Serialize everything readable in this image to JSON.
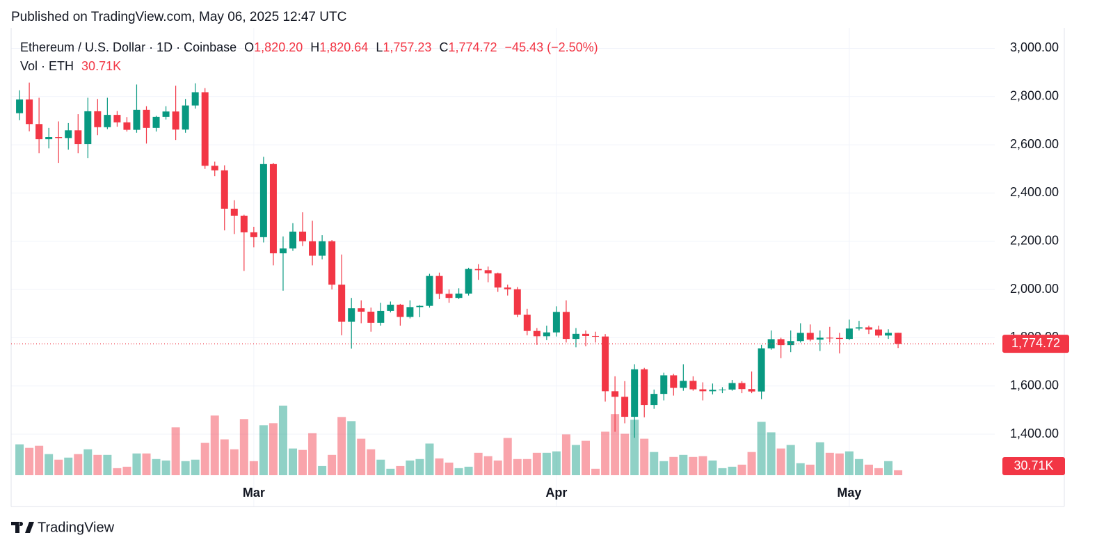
{
  "header": {
    "published": "Published on TradingView.com, May 06, 2025 12:47 UTC",
    "brand": "TradingView"
  },
  "chart_data": {
    "type": "candlestick",
    "legend": {
      "symbol": "Ethereum / U.S. Dollar · 1D · Coinbase",
      "fields": [
        {
          "key": "O",
          "value": "1,820.20"
        },
        {
          "key": "H",
          "value": "1,820.64"
        },
        {
          "key": "L",
          "value": "1,757.23"
        },
        {
          "key": "C",
          "value": "1,774.72"
        }
      ],
      "change": "−45.43 (−2.50%)",
      "volume_key": "Vol · ETH",
      "volume": "30.71K"
    },
    "up_color": "#089981",
    "down_color": "#f23645",
    "volume_up_color": "rgba(8,153,129,0.45)",
    "volume_down_color": "rgba(242,54,69,0.45)",
    "grid": true,
    "xlim": [
      -0.86,
      99.9
    ],
    "xticks": [
      {
        "value": 24,
        "label": "Mar"
      },
      {
        "value": 55,
        "label": "Apr"
      },
      {
        "value": 85,
        "label": "May"
      }
    ],
    "ylim": [
      1100,
      3085
    ],
    "yticks": [
      {
        "value": 1400,
        "label": "1,400.00"
      },
      {
        "value": 1600,
        "label": "1,600.00"
      },
      {
        "value": 1800,
        "label": "1,800.00"
      },
      {
        "value": 2000,
        "label": "2,000.00"
      },
      {
        "value": 2200,
        "label": "2,200.00"
      },
      {
        "value": 2400,
        "label": "2,400.00"
      },
      {
        "value": 2600,
        "label": "2,600.00"
      },
      {
        "value": 2800,
        "label": "2,800.00"
      },
      {
        "value": 3000,
        "label": "3,000.00"
      }
    ],
    "last_price": {
      "value": 1774.72,
      "label": "1,774.72"
    },
    "open": [
      2731,
      2788,
      2686,
      2623,
      2632,
      2628,
      2660,
      2603,
      2739,
      2673,
      2724,
      2693,
      2662,
      2745,
      2670,
      2716,
      2738,
      2663,
      2763,
      2818,
      2513,
      2494,
      2335,
      2306,
      2237,
      2217,
      2520,
      2150,
      2170,
      2240,
      2200,
      2140,
      2200,
      2020,
      1866,
      1922,
      1908,
      1862,
      1911,
      1937,
      1886,
      1927,
      1932,
      2056,
      1982,
      1965,
      1983,
      2085,
      2080,
      2067,
      2008,
      2001,
      1895,
      1828,
      1806,
      1822,
      1907,
      1795,
      1816,
      1807,
      1805,
      1578,
      1555,
      1472,
      1669,
      1521,
      1567,
      1644,
      1592,
      1621,
      1586,
      1578,
      1584,
      1585,
      1612,
      1587,
      1577,
      1756,
      1794,
      1769,
      1786,
      1820,
      1792,
      1800,
      1799,
      1795,
      1838,
      1843,
      1834,
      1809,
      1820.2
    ],
    "high": [
      2826,
      2858,
      2795,
      2670,
      2697,
      2690,
      2727,
      2795,
      2790,
      2795,
      2740,
      2715,
      2850,
      2760,
      2720,
      2760,
      2845,
      2790,
      2855,
      2835,
      2530,
      2515,
      2370,
      2310,
      2260,
      2550,
      2525,
      2220,
      2275,
      2320,
      2285,
      2225,
      2205,
      2145,
      1965,
      1955,
      1925,
      1945,
      1950,
      1940,
      1955,
      1935,
      2065,
      2070,
      2000,
      2005,
      2090,
      2105,
      2095,
      2070,
      2020,
      2010,
      1920,
      1840,
      1850,
      1930,
      1955,
      1840,
      1830,
      1825,
      1815,
      1640,
      1620,
      1690,
      1675,
      1585,
      1655,
      1650,
      1690,
      1640,
      1615,
      1610,
      1595,
      1625,
      1620,
      1660,
      1770,
      1830,
      1800,
      1830,
      1860,
      1855,
      1830,
      1845,
      1820,
      1875,
      1870,
      1850,
      1850,
      1835,
      1820.64
    ],
    "low": [
      2702,
      2656,
      2565,
      2585,
      2525,
      2580,
      2565,
      2545,
      2640,
      2665,
      2675,
      2655,
      2650,
      2605,
      2655,
      2705,
      2620,
      2650,
      2750,
      2500,
      2470,
      2245,
      2230,
      2077,
      2175,
      2195,
      2100,
      1995,
      2160,
      2180,
      2100,
      2125,
      2000,
      1810,
      1755,
      1860,
      1825,
      1850,
      1905,
      1850,
      1880,
      1885,
      1925,
      1960,
      1945,
      1960,
      1975,
      2040,
      2030,
      1990,
      1975,
      1885,
      1810,
      1770,
      1790,
      1805,
      1780,
      1760,
      1765,
      1780,
      1535,
      1410,
      1445,
      1385,
      1470,
      1505,
      1540,
      1560,
      1580,
      1580,
      1540,
      1565,
      1570,
      1580,
      1570,
      1570,
      1545,
      1750,
      1715,
      1740,
      1780,
      1785,
      1745,
      1780,
      1735,
      1790,
      1830,
      1815,
      1800,
      1795,
      1757.23
    ],
    "close": [
      2788,
      2686,
      2623,
      2632,
      2628,
      2660,
      2603,
      2739,
      2673,
      2724,
      2693,
      2662,
      2745,
      2670,
      2716,
      2738,
      2663,
      2763,
      2818,
      2513,
      2494,
      2335,
      2306,
      2237,
      2217,
      2520,
      2150,
      2170,
      2240,
      2200,
      2140,
      2200,
      2020,
      1866,
      1922,
      1908,
      1862,
      1911,
      1937,
      1886,
      1927,
      1932,
      2056,
      1982,
      1965,
      1983,
      2085,
      2080,
      2067,
      2008,
      2001,
      1895,
      1828,
      1806,
      1822,
      1907,
      1795,
      1816,
      1807,
      1805,
      1578,
      1555,
      1472,
      1669,
      1521,
      1567,
      1644,
      1592,
      1621,
      1586,
      1578,
      1584,
      1585,
      1612,
      1587,
      1577,
      1756,
      1794,
      1769,
      1786,
      1820,
      1792,
      1800,
      1799,
      1795,
      1838,
      1843,
      1834,
      1809,
      1820,
      1774.72
    ],
    "volume": [
      193,
      171,
      184,
      132,
      97,
      110,
      132,
      162,
      127,
      127,
      44,
      53,
      136,
      136,
      101,
      92,
      299,
      88,
      97,
      202,
      373,
      224,
      162,
      351,
      88,
      312,
      325,
      435,
      167,
      158,
      263,
      57,
      127,
      364,
      338,
      228,
      162,
      97,
      40,
      57,
      92,
      101,
      198,
      105,
      79,
      44,
      53,
      140,
      119,
      92,
      233,
      101,
      101,
      140,
      140,
      149,
      255,
      189,
      215,
      40,
      272,
      382,
      259,
      347,
      228,
      145,
      88,
      114,
      127,
      114,
      119,
      92,
      44,
      53,
      66,
      145,
      334,
      268,
      167,
      189,
      75,
      66,
      206,
      140,
      136,
      149,
      101,
      66,
      44,
      88,
      30.71
    ]
  }
}
